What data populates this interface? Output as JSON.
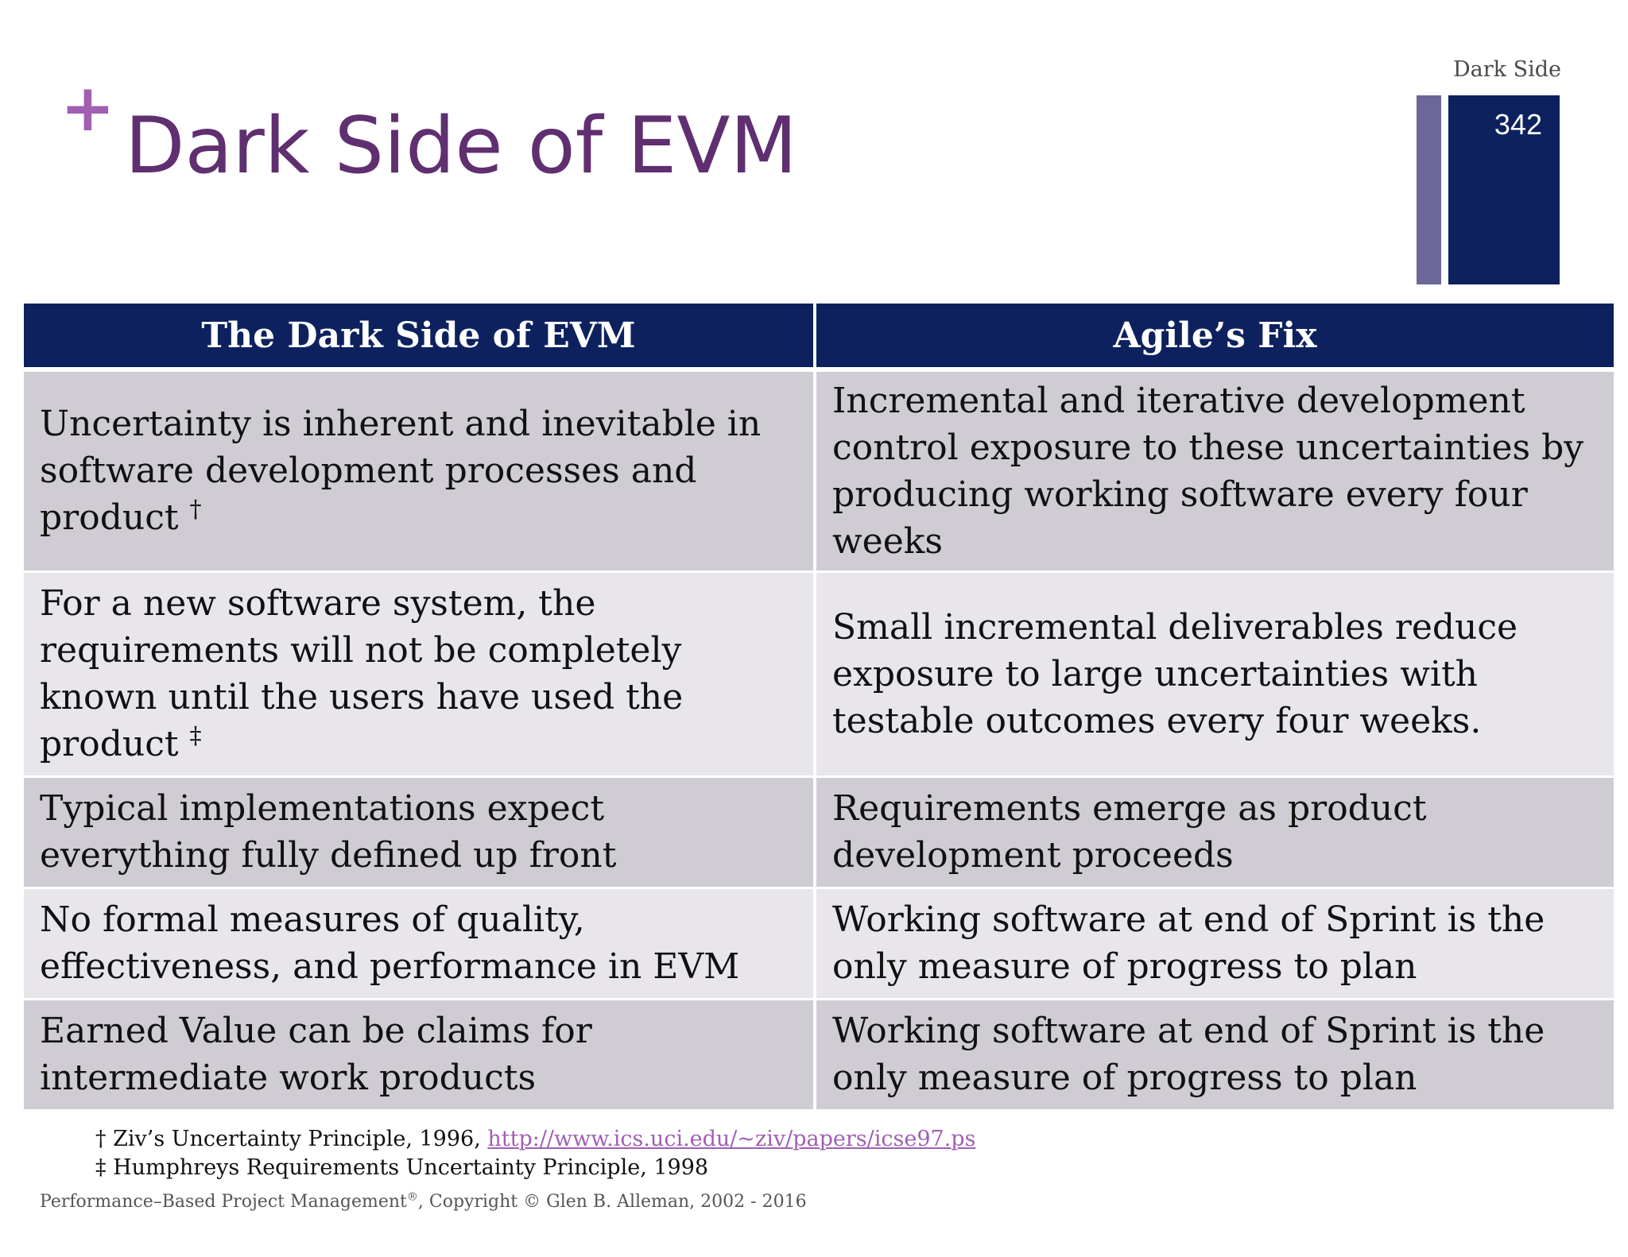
{
  "slide": {
    "plus": "+",
    "title": "Dark Side of EVM",
    "section_label": "Dark Side",
    "page_number": "342"
  },
  "table": {
    "headers": [
      "The Dark Side of EVM",
      "Agile’s Fix"
    ],
    "rows": [
      {
        "left": "Uncertainty is inherent and inevitable in software development processes and product",
        "left_mark": "†",
        "right": "Incremental and iterative development control exposure to these uncertainties by producing working software every four weeks"
      },
      {
        "left": "For a new software system, the requirements will not be completely known until the users have used the product",
        "left_mark": "‡",
        "right": "Small incremental deliverables reduce exposure to large uncertainties with testable outcomes every four weeks."
      },
      {
        "left": "Typical implementations expect everything fully defined up front",
        "right": "Requirements emerge as product development proceeds"
      },
      {
        "left": "No formal measures of quality, effectiveness, and performance in EVM",
        "right": "Working software at end of Sprint is the only measure of progress to plan"
      },
      {
        "left": "Earned Value can be claims for intermediate work products",
        "right": "Working software at end of Sprint is the only measure of progress to plan"
      }
    ]
  },
  "footnotes": {
    "note1_prefix": "† Ziv’s Uncertainty Principle, 1996, ",
    "note1_link": "http://www.ics.uci.edu/~ziv/papers/icse97.ps",
    "note2": "‡ Humphreys Requirements Uncertainty Principle, 1998"
  },
  "copyright": {
    "prefix": "Performance–Based Project Management",
    "reg": "®",
    "suffix": ", Copyright © Glen B. Alleman, 2002 - 2016"
  },
  "colors": {
    "title": "#5f2f70",
    "plus": "#a15fb3",
    "header_bg": "#0d215e",
    "row_dark": "#d0ccd3",
    "row_light": "#e8e6eb",
    "accent_bar": "#6c6799"
  }
}
